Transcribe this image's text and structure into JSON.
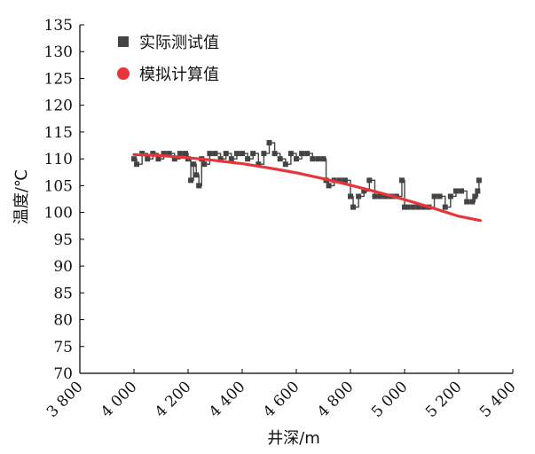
{
  "chart_data": {
    "type": "line",
    "xlabel": "井深/m",
    "ylabel": "温度/℃",
    "xlim": [
      3800,
      5400
    ],
    "ylim": [
      70,
      135
    ],
    "xticks": [
      3800,
      4000,
      4200,
      4400,
      4600,
      4800,
      5000,
      5200,
      5400
    ],
    "xtick_labels": [
      "3 800",
      "4 000",
      "4 200",
      "4 400",
      "4 600",
      "4 800",
      "5 000",
      "5 200",
      "5 400"
    ],
    "yticks": [
      70,
      75,
      80,
      85,
      90,
      95,
      100,
      105,
      110,
      115,
      120,
      125,
      130,
      135
    ],
    "ytick_labels": [
      "70",
      "75",
      "80",
      "85",
      "90",
      "95",
      "100",
      "105",
      "110",
      "115",
      "120",
      "125",
      "130",
      "135"
    ],
    "grid": false,
    "legend_position": "top-left",
    "series": [
      {
        "name": "实际测试值",
        "marker": "square",
        "color": "#444444",
        "x": [
          4000,
          4010,
          4030,
          4050,
          4070,
          4090,
          4110,
          4130,
          4150,
          4170,
          4190,
          4200,
          4210,
          4220,
          4230,
          4240,
          4250,
          4260,
          4280,
          4300,
          4320,
          4340,
          4360,
          4380,
          4400,
          4420,
          4440,
          4460,
          4480,
          4500,
          4520,
          4540,
          4560,
          4580,
          4600,
          4620,
          4640,
          4660,
          4680,
          4700,
          4710,
          4720,
          4740,
          4760,
          4780,
          4800,
          4810,
          4830,
          4850,
          4870,
          4890,
          4910,
          4930,
          4950,
          4970,
          4990,
          5000,
          5010,
          5030,
          5050,
          5070,
          5090,
          5110,
          5130,
          5150,
          5170,
          5190,
          5210,
          5230,
          5250,
          5260,
          5270,
          5275
        ],
        "y": [
          110,
          109,
          111,
          110,
          111,
          110,
          111,
          111,
          110,
          111,
          111,
          110,
          106,
          109,
          107,
          105,
          110,
          109,
          111,
          111,
          110,
          111,
          110,
          111,
          111,
          110,
          111,
          109,
          111,
          113,
          111,
          110,
          109,
          111,
          110,
          111,
          111,
          110,
          110,
          110,
          106,
          105,
          106,
          106,
          106,
          103,
          101,
          103,
          104,
          106,
          103,
          103,
          103,
          103,
          103,
          106,
          101,
          101,
          101,
          101,
          101,
          101,
          103,
          103,
          101,
          103,
          104,
          104,
          102,
          102,
          103,
          104,
          106
        ]
      },
      {
        "name": "模拟计算值",
        "marker": "circle",
        "color": "#e8353a",
        "x": [
          4000,
          4100,
          4200,
          4300,
          4400,
          4500,
          4600,
          4700,
          4800,
          4900,
          5000,
          5100,
          5200,
          5280
        ],
        "y": [
          110.8,
          110.6,
          110.2,
          109.7,
          109.1,
          108.3,
          107.4,
          106.3,
          105.1,
          103.8,
          102.4,
          100.9,
          99.3,
          98.5
        ]
      }
    ]
  }
}
